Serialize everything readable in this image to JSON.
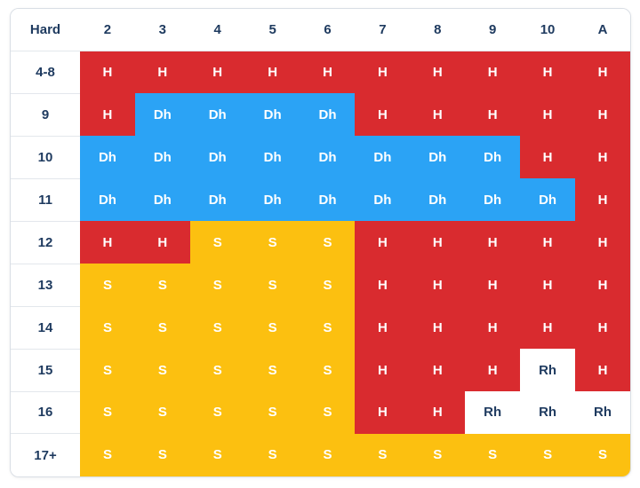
{
  "table": {
    "corner_label": "Hard",
    "dealer_cards": [
      "2",
      "3",
      "4",
      "5",
      "6",
      "7",
      "8",
      "9",
      "10",
      "A"
    ],
    "rows": [
      {
        "hand": "4-8",
        "actions": [
          "H",
          "H",
          "H",
          "H",
          "H",
          "H",
          "H",
          "H",
          "H",
          "H"
        ]
      },
      {
        "hand": "9",
        "actions": [
          "H",
          "Dh",
          "Dh",
          "Dh",
          "Dh",
          "H",
          "H",
          "H",
          "H",
          "H"
        ]
      },
      {
        "hand": "10",
        "actions": [
          "Dh",
          "Dh",
          "Dh",
          "Dh",
          "Dh",
          "Dh",
          "Dh",
          "Dh",
          "H",
          "H"
        ]
      },
      {
        "hand": "11",
        "actions": [
          "Dh",
          "Dh",
          "Dh",
          "Dh",
          "Dh",
          "Dh",
          "Dh",
          "Dh",
          "Dh",
          "H"
        ]
      },
      {
        "hand": "12",
        "actions": [
          "H",
          "H",
          "S",
          "S",
          "S",
          "H",
          "H",
          "H",
          "H",
          "H"
        ]
      },
      {
        "hand": "13",
        "actions": [
          "S",
          "S",
          "S",
          "S",
          "S",
          "H",
          "H",
          "H",
          "H",
          "H"
        ]
      },
      {
        "hand": "14",
        "actions": [
          "S",
          "S",
          "S",
          "S",
          "S",
          "H",
          "H",
          "H",
          "H",
          "H"
        ]
      },
      {
        "hand": "15",
        "actions": [
          "S",
          "S",
          "S",
          "S",
          "S",
          "H",
          "H",
          "H",
          "Rh",
          "H"
        ]
      },
      {
        "hand": "16",
        "actions": [
          "S",
          "S",
          "S",
          "S",
          "S",
          "H",
          "H",
          "Rh",
          "Rh",
          "Rh"
        ]
      },
      {
        "hand": "17+",
        "actions": [
          "S",
          "S",
          "S",
          "S",
          "S",
          "S",
          "S",
          "S",
          "S",
          "S"
        ]
      }
    ]
  },
  "action_colors": {
    "H": "#d92b2f",
    "Dh": "#2ba3f5",
    "S": "#fcc010",
    "Rh": "#ffffff"
  }
}
